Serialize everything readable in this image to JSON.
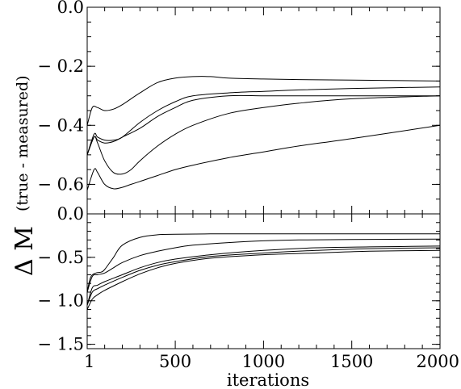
{
  "ylabel": {
    "main": "Δ M",
    "sub": "(true - measured)"
  },
  "chart_data": [
    {
      "type": "line",
      "panel": "top",
      "xlabel": "",
      "xlim": [
        1,
        2000
      ],
      "ylim": [
        -0.7,
        0.0
      ],
      "ytick_labels": [
        "0.0",
        "− 0.2",
        "− 0.4",
        "− 0.6"
      ],
      "ytick_values": [
        0.0,
        -0.2,
        -0.4,
        -0.6
      ],
      "grid": false,
      "series": [
        {
          "x": [
            1,
            30,
            60,
            100,
            150,
            200,
            300,
            400,
            500,
            600,
            700,
            800,
            1000,
            1200,
            1500,
            2000
          ],
          "values": [
            -0.4,
            -0.34,
            -0.34,
            -0.35,
            -0.345,
            -0.33,
            -0.29,
            -0.255,
            -0.24,
            -0.235,
            -0.235,
            -0.24,
            -0.243,
            -0.245,
            -0.247,
            -0.25
          ]
        },
        {
          "x": [
            1,
            40,
            60,
            100,
            150,
            200,
            300,
            400,
            500,
            600,
            800,
            1000,
            1200,
            1500,
            2000
          ],
          "values": [
            -0.5,
            -0.43,
            -0.44,
            -0.45,
            -0.45,
            -0.44,
            -0.39,
            -0.35,
            -0.32,
            -0.3,
            -0.29,
            -0.285,
            -0.28,
            -0.275,
            -0.27
          ]
        },
        {
          "x": [
            1,
            40,
            60,
            100,
            150,
            200,
            300,
            400,
            500,
            600,
            800,
            1000,
            1200,
            1500,
            2000
          ],
          "values": [
            -0.5,
            -0.44,
            -0.45,
            -0.46,
            -0.455,
            -0.44,
            -0.41,
            -0.37,
            -0.34,
            -0.315,
            -0.3,
            -0.3,
            -0.3,
            -0.3,
            -0.3
          ]
        },
        {
          "x": [
            1,
            40,
            60,
            100,
            150,
            200,
            250,
            300,
            400,
            500,
            600,
            800,
            1000,
            1200,
            1500,
            2000
          ],
          "values": [
            -0.5,
            -0.44,
            -0.46,
            -0.52,
            -0.56,
            -0.565,
            -0.55,
            -0.52,
            -0.47,
            -0.43,
            -0.4,
            -0.36,
            -0.34,
            -0.325,
            -0.31,
            -0.3
          ]
        },
        {
          "x": [
            1,
            40,
            60,
            100,
            150,
            200,
            250,
            300,
            400,
            500,
            600,
            800,
            1000,
            1200,
            1500,
            2000
          ],
          "values": [
            -0.62,
            -0.55,
            -0.56,
            -0.6,
            -0.615,
            -0.61,
            -0.6,
            -0.59,
            -0.57,
            -0.55,
            -0.535,
            -0.51,
            -0.49,
            -0.47,
            -0.445,
            -0.4
          ]
        }
      ]
    },
    {
      "type": "line",
      "panel": "bottom",
      "xlabel": "iterations",
      "xlim": [
        1,
        2000
      ],
      "ylim": [
        -1.55,
        0.0
      ],
      "xtick_labels": [
        "1",
        "500",
        "1000",
        "1500",
        "2000"
      ],
      "xtick_values": [
        1,
        500,
        1000,
        1500,
        2000
      ],
      "ytick_labels": [
        "0.0",
        "− 0.5",
        "− 1.0",
        "− 1.5"
      ],
      "ytick_values": [
        0.0,
        -0.5,
        -1.0,
        -1.5
      ],
      "grid": false,
      "series": [
        {
          "x": [
            1,
            20,
            50,
            80,
            100,
            150,
            200,
            300,
            400,
            500,
            700,
            1000,
            1500,
            2000
          ],
          "values": [
            -0.9,
            -0.73,
            -0.68,
            -0.67,
            -0.64,
            -0.5,
            -0.36,
            -0.27,
            -0.24,
            -0.235,
            -0.23,
            -0.23,
            -0.23,
            -0.23
          ]
        },
        {
          "x": [
            1,
            30,
            60,
            100,
            150,
            200,
            300,
            400,
            500,
            600,
            800,
            1000,
            1200,
            1500,
            2000
          ],
          "values": [
            -0.9,
            -0.72,
            -0.7,
            -0.68,
            -0.62,
            -0.56,
            -0.48,
            -0.43,
            -0.39,
            -0.36,
            -0.33,
            -0.31,
            -0.3,
            -0.295,
            -0.29
          ]
        },
        {
          "x": [
            1,
            30,
            60,
            100,
            200,
            300,
            400,
            500,
            700,
            1000,
            1300,
            1600,
            2000
          ],
          "values": [
            -1.05,
            -0.85,
            -0.82,
            -0.78,
            -0.7,
            -0.62,
            -0.56,
            -0.52,
            -0.47,
            -0.42,
            -0.39,
            -0.38,
            -0.37
          ]
        },
        {
          "x": [
            1,
            30,
            60,
            100,
            200,
            300,
            400,
            500,
            700,
            1000,
            1300,
            1600,
            2000
          ],
          "values": [
            -1.05,
            -0.9,
            -0.86,
            -0.82,
            -0.73,
            -0.65,
            -0.59,
            -0.55,
            -0.49,
            -0.45,
            -0.42,
            -0.4,
            -0.39
          ]
        },
        {
          "x": [
            1,
            30,
            60,
            100,
            200,
            300,
            400,
            500,
            700,
            1000,
            1300,
            1600,
            2000
          ],
          "values": [
            -1.1,
            -0.98,
            -0.93,
            -0.88,
            -0.78,
            -0.69,
            -0.62,
            -0.57,
            -0.51,
            -0.47,
            -0.45,
            -0.43,
            -0.42
          ]
        }
      ]
    }
  ]
}
